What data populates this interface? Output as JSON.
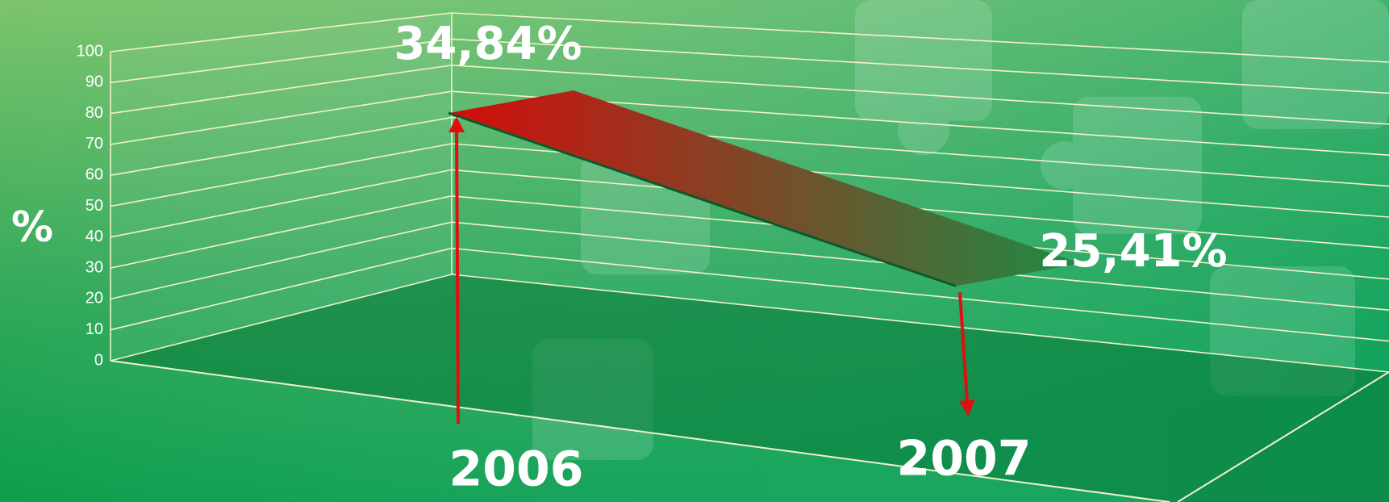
{
  "chart_data": {
    "type": "ribbon",
    "y_label": "%",
    "categories": [
      "2006",
      "2007"
    ],
    "values": [
      34.84,
      25.41
    ],
    "value_labels": [
      "34,84%",
      "25,41%"
    ],
    "colors": [
      "#d40c0c",
      "#1f8a45"
    ],
    "ylim": [
      0,
      100
    ],
    "yticks": [
      0,
      10,
      20,
      30,
      40,
      50,
      60,
      70,
      80,
      90,
      100
    ],
    "grid": true
  }
}
